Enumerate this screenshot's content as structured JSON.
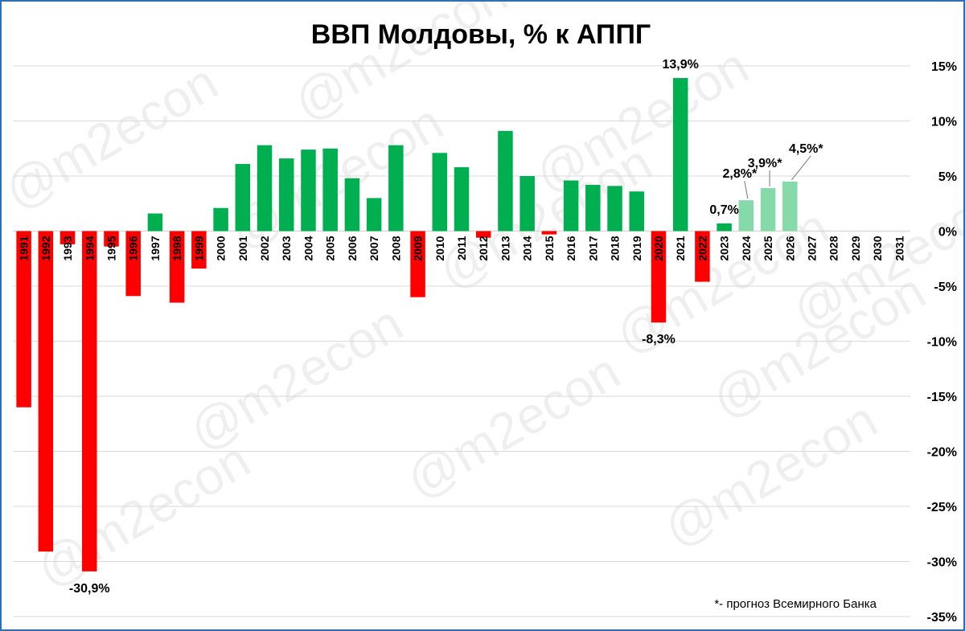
{
  "chart_data": {
    "type": "bar",
    "title": "ВВП Молдовы, % к АППГ",
    "footnote": "*- прогноз Всемирного Банка",
    "watermark": "@m2econ",
    "y_axis": {
      "position": "right",
      "min": -35,
      "max": 15,
      "tick_labels": [
        "15%",
        "10%",
        "5%",
        "0%",
        "-5%",
        "-10%",
        "-15%",
        "-20%",
        "-25%",
        "-30%",
        "-35%"
      ],
      "grid": true
    },
    "categories": [
      "1991",
      "1992",
      "1993",
      "1994",
      "1995",
      "1996",
      "1997",
      "1998",
      "1999",
      "2000",
      "2001",
      "2002",
      "2003",
      "2004",
      "2005",
      "2006",
      "2007",
      "2008",
      "2009",
      "2010",
      "2011",
      "2012",
      "2013",
      "2014",
      "2015",
      "2016",
      "2017",
      "2018",
      "2019",
      "2020",
      "2021",
      "2022",
      "2023",
      "2024",
      "2025",
      "2026",
      "2027",
      "2028",
      "2029",
      "2030",
      "2031"
    ],
    "values": [
      -16.0,
      -29.1,
      -1.2,
      -30.9,
      -1.4,
      -5.9,
      1.6,
      -6.5,
      -3.4,
      2.1,
      6.1,
      7.8,
      6.6,
      7.4,
      7.5,
      4.8,
      3.0,
      7.8,
      -6.0,
      7.1,
      5.8,
      -0.6,
      9.1,
      5.0,
      -0.3,
      4.6,
      4.2,
      4.1,
      3.6,
      -8.3,
      13.9,
      -4.6,
      0.7,
      2.8,
      3.9,
      4.5,
      null,
      null,
      null,
      null,
      null
    ],
    "forecast_from": "2024",
    "data_labels": [
      {
        "category": "1994",
        "text": "-30,9%"
      },
      {
        "category": "2020",
        "text": "-8,3%"
      },
      {
        "category": "2021",
        "text": "13,9%"
      },
      {
        "category": "2023",
        "text": "0,7%"
      },
      {
        "category": "2024",
        "text": "2,8%*"
      },
      {
        "category": "2025",
        "text": "3,9%*"
      },
      {
        "category": "2026",
        "text": "4,5%*"
      }
    ],
    "colors": {
      "positive": "#00b050",
      "negative": "#ff0000",
      "forecast": "#86d9a8",
      "grid": "#d9d9d9",
      "frame": "#2f6fb5"
    }
  }
}
